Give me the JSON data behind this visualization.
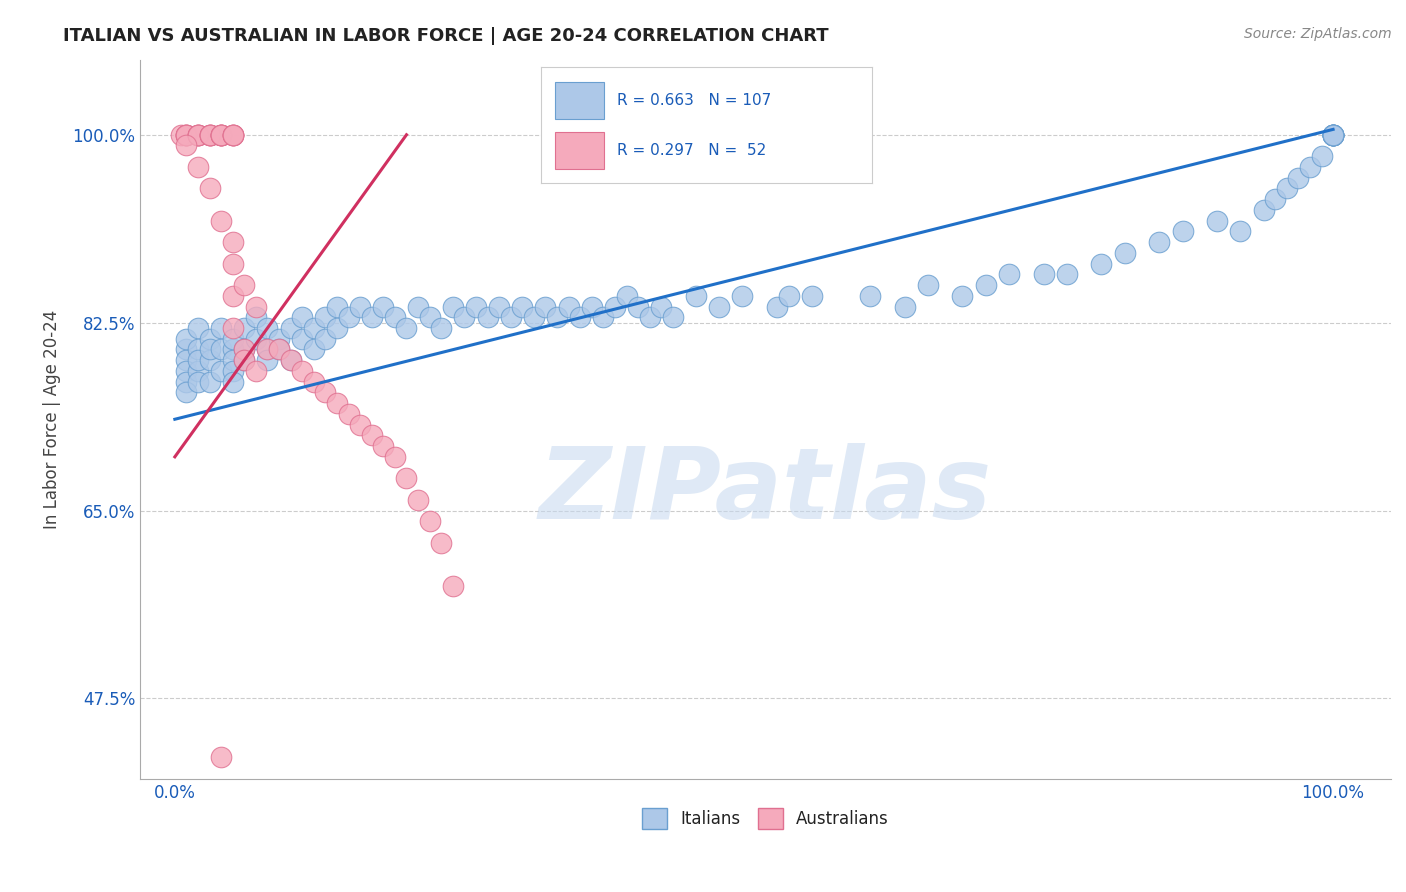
{
  "title": "ITALIAN VS AUSTRALIAN IN LABOR FORCE | AGE 20-24 CORRELATION CHART",
  "source": "Source: ZipAtlas.com",
  "ylabel": "In Labor Force | Age 20-24",
  "x_ticks": [
    0.0,
    100.0
  ],
  "x_tick_labels": [
    "0.0%",
    "100.0%"
  ],
  "y_ticks": [
    47.5,
    65.0,
    82.5,
    100.0
  ],
  "y_tick_labels": [
    "47.5%",
    "65.0%",
    "82.5%",
    "100.0%"
  ],
  "xlim": [
    -3,
    105
  ],
  "ylim": [
    40,
    107
  ],
  "blue_R": 0.663,
  "blue_N": 107,
  "pink_R": 0.297,
  "pink_N": 52,
  "blue_color": "#adc8e8",
  "pink_color": "#f5aabc",
  "blue_edge_color": "#6a9fd0",
  "pink_edge_color": "#e07090",
  "blue_line_color": "#2070c8",
  "pink_line_color": "#d03060",
  "watermark_text": "ZIPatlas",
  "background_color": "#ffffff",
  "grid_color": "#cccccc",
  "title_color": "#222222",
  "axis_label_color": "#444444",
  "tick_label_color": "#1a5cb8",
  "legend_text_color": "#1a5cb8",
  "blue_line_x": [
    0,
    100
  ],
  "blue_line_y": [
    73.5,
    100.5
  ],
  "pink_line_x": [
    0,
    20
  ],
  "pink_line_y": [
    70.0,
    100.0
  ],
  "blue_x": [
    1,
    1,
    1,
    1,
    1,
    1,
    2,
    2,
    2,
    2,
    2,
    3,
    3,
    3,
    3,
    4,
    4,
    4,
    5,
    5,
    5,
    5,
    5,
    6,
    6,
    6,
    7,
    7,
    8,
    8,
    8,
    9,
    9,
    10,
    10,
    11,
    11,
    12,
    12,
    13,
    13,
    14,
    14,
    15,
    16,
    17,
    18,
    19,
    20,
    21,
    22,
    23,
    24,
    25,
    26,
    27,
    28,
    29,
    30,
    31,
    32,
    33,
    34,
    35,
    36,
    37,
    38,
    39,
    40,
    41,
    42,
    43,
    45,
    47,
    49,
    52,
    53,
    55,
    60,
    63,
    65,
    68,
    70,
    72,
    75,
    77,
    80,
    82,
    85,
    87,
    90,
    92,
    94,
    95,
    96,
    97,
    98,
    99,
    100,
    100,
    100,
    100,
    100,
    100,
    100,
    100,
    100
  ],
  "blue_y": [
    80,
    79,
    78,
    81,
    77,
    76,
    82,
    80,
    78,
    79,
    77,
    81,
    79,
    77,
    80,
    82,
    78,
    80,
    80,
    79,
    81,
    78,
    77,
    82,
    80,
    79,
    83,
    81,
    82,
    80,
    79,
    81,
    80,
    82,
    79,
    83,
    81,
    82,
    80,
    83,
    81,
    84,
    82,
    83,
    84,
    83,
    84,
    83,
    82,
    84,
    83,
    82,
    84,
    83,
    84,
    83,
    84,
    83,
    84,
    83,
    84,
    83,
    84,
    83,
    84,
    83,
    84,
    85,
    84,
    83,
    84,
    83,
    85,
    84,
    85,
    84,
    85,
    85,
    85,
    84,
    86,
    85,
    86,
    87,
    87,
    87,
    88,
    89,
    90,
    91,
    92,
    91,
    93,
    94,
    95,
    96,
    97,
    98,
    100,
    100,
    100,
    100,
    100,
    100,
    100,
    100,
    100
  ],
  "pink_x": [
    0.5,
    1,
    1,
    1,
    1,
    2,
    2,
    2,
    2,
    3,
    3,
    3,
    3,
    4,
    4,
    4,
    4,
    4,
    5,
    5,
    5,
    5,
    5,
    5,
    5,
    6,
    6,
    7,
    8,
    9,
    10,
    11,
    12,
    13,
    14,
    15,
    16,
    17,
    18,
    19,
    20,
    21,
    22,
    23,
    24,
    5,
    6,
    7,
    3,
    2,
    1,
    4
  ],
  "pink_y": [
    100,
    100,
    100,
    100,
    100,
    100,
    100,
    100,
    100,
    100,
    100,
    100,
    100,
    100,
    100,
    100,
    100,
    100,
    100,
    100,
    100,
    100,
    88,
    85,
    82,
    80,
    79,
    78,
    80,
    80,
    79,
    78,
    77,
    76,
    75,
    74,
    73,
    72,
    71,
    70,
    68,
    66,
    64,
    62,
    58,
    90,
    86,
    84,
    95,
    97,
    99,
    92
  ],
  "pink_outlier_x": [
    4
  ],
  "pink_outlier_y": [
    42
  ]
}
